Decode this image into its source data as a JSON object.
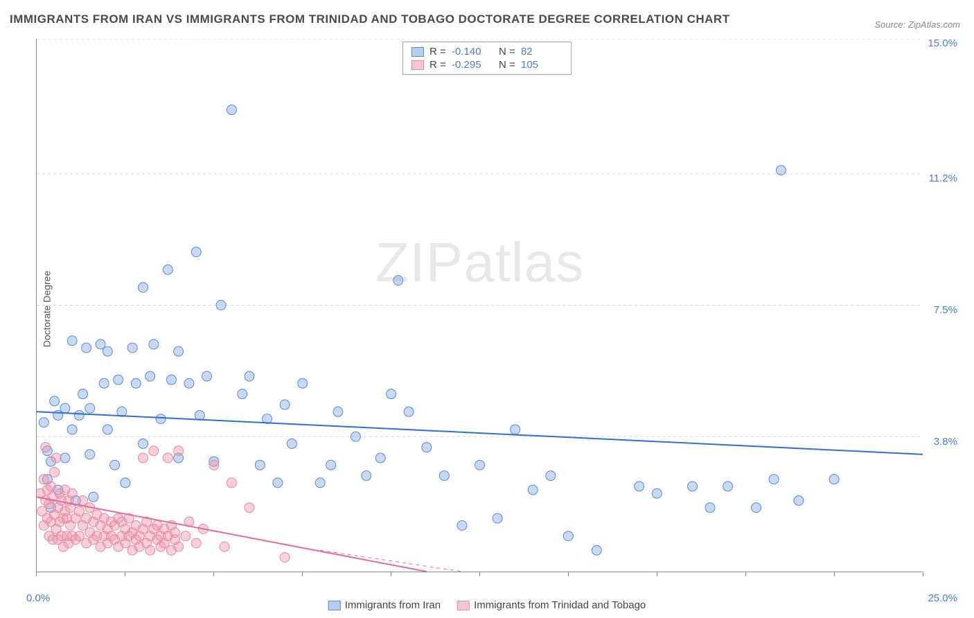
{
  "title": "IMMIGRANTS FROM IRAN VS IMMIGRANTS FROM TRINIDAD AND TOBAGO DOCTORATE DEGREE CORRELATION CHART",
  "source": "Source: ZipAtlas.com",
  "ylabel": "Doctorate Degree",
  "watermark_main": "ZIP",
  "watermark_sub": "atlas",
  "chart": {
    "type": "scatter",
    "xlim": [
      0,
      25
    ],
    "ylim": [
      0,
      15
    ],
    "x_min_label": "0.0%",
    "x_max_label": "25.0%",
    "y_ticks": [
      3.8,
      7.5,
      11.2,
      15.0
    ],
    "y_tick_labels": [
      "3.8%",
      "7.5%",
      "11.2%",
      "15.0%"
    ],
    "x_tick_positions": [
      0,
      2.5,
      5,
      7.5,
      10,
      12.5,
      15,
      17.5,
      20,
      22.5,
      25
    ],
    "grid_color": "#d8d8d8",
    "axis_color": "#888888",
    "background_color": "#ffffff",
    "tick_label_color": "#4b7bd6",
    "marker_radius": 7,
    "marker_stroke_width": 1,
    "trend_line_width": 2,
    "series": [
      {
        "name": "Immigrants from Iran",
        "short": "iran",
        "fill_color": "rgba(130,170,230,0.45)",
        "stroke_color": "#5a8ad0",
        "swatch_fill": "#b8cef0",
        "swatch_border": "#5a8ad0",
        "line_color": "#2e6fd0",
        "r_value": "-0.140",
        "n_value": "82",
        "trend": {
          "x1": 0,
          "y1": 4.5,
          "x2": 25,
          "y2": 3.3
        },
        "points": [
          [
            0.2,
            4.2
          ],
          [
            0.3,
            2.6
          ],
          [
            0.3,
            3.4
          ],
          [
            0.4,
            3.1
          ],
          [
            0.4,
            1.8
          ],
          [
            0.5,
            4.8
          ],
          [
            0.6,
            2.3
          ],
          [
            0.6,
            4.4
          ],
          [
            0.8,
            3.2
          ],
          [
            0.8,
            4.6
          ],
          [
            1.0,
            4.0
          ],
          [
            1.0,
            6.5
          ],
          [
            1.1,
            2.0
          ],
          [
            1.2,
            4.4
          ],
          [
            1.3,
            5.0
          ],
          [
            1.4,
            6.3
          ],
          [
            1.5,
            3.3
          ],
          [
            1.5,
            4.6
          ],
          [
            1.6,
            2.1
          ],
          [
            1.8,
            6.4
          ],
          [
            1.9,
            5.3
          ],
          [
            2.0,
            4.0
          ],
          [
            2.0,
            6.2
          ],
          [
            2.2,
            3.0
          ],
          [
            2.3,
            5.4
          ],
          [
            2.4,
            4.5
          ],
          [
            2.5,
            2.5
          ],
          [
            2.7,
            6.3
          ],
          [
            2.8,
            5.3
          ],
          [
            3.0,
            3.6
          ],
          [
            3.0,
            8.0
          ],
          [
            3.2,
            5.5
          ],
          [
            3.3,
            6.4
          ],
          [
            3.5,
            4.3
          ],
          [
            3.7,
            8.5
          ],
          [
            3.8,
            5.4
          ],
          [
            4.0,
            3.2
          ],
          [
            4.0,
            6.2
          ],
          [
            4.3,
            5.3
          ],
          [
            4.5,
            9.0
          ],
          [
            4.6,
            4.4
          ],
          [
            4.8,
            5.5
          ],
          [
            5.0,
            3.1
          ],
          [
            5.2,
            7.5
          ],
          [
            5.5,
            13.0
          ],
          [
            5.8,
            5.0
          ],
          [
            6.0,
            5.5
          ],
          [
            6.3,
            3.0
          ],
          [
            6.5,
            4.3
          ],
          [
            6.8,
            2.5
          ],
          [
            7.0,
            4.7
          ],
          [
            7.2,
            3.6
          ],
          [
            7.5,
            5.3
          ],
          [
            8.0,
            2.5
          ],
          [
            8.3,
            3.0
          ],
          [
            8.5,
            4.5
          ],
          [
            9.0,
            3.8
          ],
          [
            9.3,
            2.7
          ],
          [
            9.7,
            3.2
          ],
          [
            10.0,
            5.0
          ],
          [
            10.2,
            8.2
          ],
          [
            10.5,
            4.5
          ],
          [
            11.0,
            3.5
          ],
          [
            11.5,
            2.7
          ],
          [
            12.0,
            1.3
          ],
          [
            12.5,
            3.0
          ],
          [
            13.0,
            1.5
          ],
          [
            13.5,
            4.0
          ],
          [
            14.0,
            2.3
          ],
          [
            14.5,
            2.7
          ],
          [
            15.0,
            1.0
          ],
          [
            15.8,
            0.6
          ],
          [
            17.0,
            2.4
          ],
          [
            17.5,
            2.2
          ],
          [
            18.5,
            2.4
          ],
          [
            19.0,
            1.8
          ],
          [
            19.5,
            2.4
          ],
          [
            20.3,
            1.8
          ],
          [
            20.8,
            2.6
          ],
          [
            21.0,
            11.3
          ],
          [
            21.5,
            2.0
          ],
          [
            22.5,
            2.6
          ]
        ]
      },
      {
        "name": "Immigrants from Trinidad and Tobago",
        "short": "trinidad",
        "fill_color": "rgba(240,150,175,0.45)",
        "stroke_color": "#e589a4",
        "swatch_fill": "#f5c5d3",
        "swatch_border": "#e589a4",
        "line_color": "#e86a94",
        "r_value": "-0.295",
        "n_value": "105",
        "trend": {
          "x1": 0,
          "y1": 2.1,
          "x2": 11,
          "y2": 0.0
        },
        "trend_dashed_ext": {
          "x1": 8,
          "y1": 0.6,
          "x2": 12,
          "y2": 0.0
        },
        "points": [
          [
            0.1,
            2.2
          ],
          [
            0.15,
            1.7
          ],
          [
            0.2,
            2.6
          ],
          [
            0.2,
            1.3
          ],
          [
            0.25,
            2.0
          ],
          [
            0.25,
            3.5
          ],
          [
            0.3,
            1.5
          ],
          [
            0.3,
            2.3
          ],
          [
            0.35,
            1.0
          ],
          [
            0.35,
            1.9
          ],
          [
            0.4,
            2.4
          ],
          [
            0.4,
            1.4
          ],
          [
            0.45,
            0.9
          ],
          [
            0.45,
            2.1
          ],
          [
            0.5,
            1.6
          ],
          [
            0.5,
            2.8
          ],
          [
            0.55,
            1.2
          ],
          [
            0.55,
            3.2
          ],
          [
            0.6,
            1.8
          ],
          [
            0.6,
            0.9
          ],
          [
            0.65,
            2.2
          ],
          [
            0.65,
            1.4
          ],
          [
            0.7,
            1.0
          ],
          [
            0.7,
            2.0
          ],
          [
            0.75,
            1.5
          ],
          [
            0.75,
            0.7
          ],
          [
            0.8,
            1.7
          ],
          [
            0.8,
            2.3
          ],
          [
            0.85,
            1.0
          ],
          [
            0.85,
            1.5
          ],
          [
            0.9,
            2.0
          ],
          [
            0.9,
            0.8
          ],
          [
            0.95,
            1.3
          ],
          [
            0.95,
            1.8
          ],
          [
            1.0,
            1.0
          ],
          [
            1.0,
            2.2
          ],
          [
            1.1,
            1.5
          ],
          [
            1.1,
            0.9
          ],
          [
            1.2,
            1.7
          ],
          [
            1.2,
            1.0
          ],
          [
            1.3,
            1.3
          ],
          [
            1.3,
            2.0
          ],
          [
            1.4,
            0.8
          ],
          [
            1.4,
            1.5
          ],
          [
            1.5,
            1.1
          ],
          [
            1.5,
            1.8
          ],
          [
            1.6,
            0.9
          ],
          [
            1.6,
            1.4
          ],
          [
            1.7,
            1.6
          ],
          [
            1.7,
            1.0
          ],
          [
            1.8,
            1.3
          ],
          [
            1.8,
            0.7
          ],
          [
            1.9,
            1.5
          ],
          [
            1.9,
            1.0
          ],
          [
            2.0,
            1.2
          ],
          [
            2.0,
            0.8
          ],
          [
            2.1,
            1.4
          ],
          [
            2.1,
            1.0
          ],
          [
            2.2,
            0.9
          ],
          [
            2.2,
            1.3
          ],
          [
            2.3,
            1.5
          ],
          [
            2.3,
            0.7
          ],
          [
            2.4,
            1.0
          ],
          [
            2.4,
            1.4
          ],
          [
            2.5,
            0.8
          ],
          [
            2.5,
            1.2
          ],
          [
            2.6,
            1.0
          ],
          [
            2.6,
            1.5
          ],
          [
            2.7,
            0.6
          ],
          [
            2.7,
            1.1
          ],
          [
            2.8,
            0.9
          ],
          [
            2.8,
            1.3
          ],
          [
            2.9,
            1.0
          ],
          [
            2.9,
            0.7
          ],
          [
            3.0,
            1.2
          ],
          [
            3.0,
            3.2
          ],
          [
            3.1,
            0.8
          ],
          [
            3.1,
            1.4
          ],
          [
            3.2,
            1.0
          ],
          [
            3.2,
            0.6
          ],
          [
            3.3,
            1.2
          ],
          [
            3.3,
            3.4
          ],
          [
            3.4,
            0.9
          ],
          [
            3.4,
            1.3
          ],
          [
            3.5,
            0.7
          ],
          [
            3.5,
            1.0
          ],
          [
            3.6,
            1.2
          ],
          [
            3.6,
            0.8
          ],
          [
            3.7,
            3.2
          ],
          [
            3.7,
            1.0
          ],
          [
            3.8,
            0.6
          ],
          [
            3.8,
            1.3
          ],
          [
            3.9,
            0.9
          ],
          [
            3.9,
            1.1
          ],
          [
            4.0,
            3.4
          ],
          [
            4.0,
            0.7
          ],
          [
            4.2,
            1.0
          ],
          [
            4.3,
            1.4
          ],
          [
            4.5,
            0.8
          ],
          [
            4.7,
            1.2
          ],
          [
            5.0,
            3.0
          ],
          [
            5.3,
            0.7
          ],
          [
            5.5,
            2.5
          ],
          [
            6.0,
            1.8
          ],
          [
            7.0,
            0.4
          ]
        ]
      }
    ]
  },
  "legend_top": {
    "r_label": "R =",
    "n_label": "N ="
  },
  "legend_bottom": {
    "items": [
      "Immigrants from Iran",
      "Immigrants from Trinidad and Tobago"
    ]
  }
}
